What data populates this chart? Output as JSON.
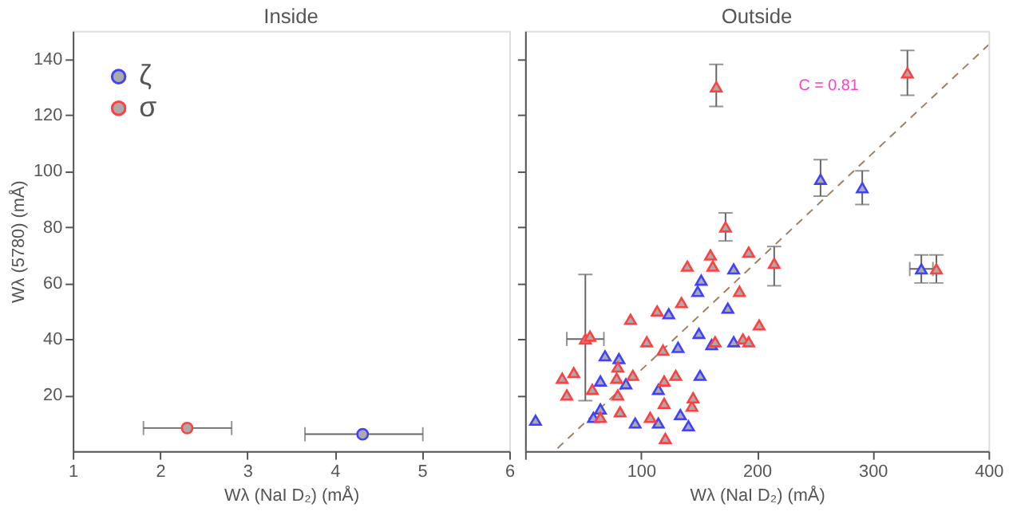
{
  "chart_data": [
    {
      "type": "scatter",
      "title": "Inside",
      "xlabel": "Wλ (NaI D₂) (mÅ)",
      "ylabel": "Wλ (5780) (mÅ)",
      "xlim": [
        1,
        6
      ],
      "ylim": [
        0,
        150
      ],
      "xticks": [
        1,
        2,
        3,
        4,
        5,
        6
      ],
      "yticks": [
        20,
        40,
        60,
        80,
        100,
        120,
        140
      ],
      "legend": "top left",
      "marker": "circle",
      "grid": false,
      "series": [
        {
          "name": "ζ",
          "color": "#4040ff",
          "x": [
            4.32
          ],
          "values": [
            6
          ],
          "xerrors": [
            [
              3.66,
              5.01
            ]
          ]
        },
        {
          "name": "σ",
          "color": "#ff4040",
          "x": [
            2.31
          ],
          "values": [
            8.2
          ],
          "xerrors": [
            [
              1.81,
              2.82
            ]
          ]
        }
      ]
    },
    {
      "type": "scatter",
      "title": "Outside",
      "xlabel": "Wλ (NaI D₂) (mÅ)",
      "xlim": [
        0,
        400
      ],
      "ylim": [
        0,
        150
      ],
      "xticks": [
        {
          "value": 0,
          "label": null
        },
        100,
        200,
        300,
        400
      ],
      "yticks": [
        20,
        40,
        60,
        80,
        100,
        120,
        140
      ],
      "tick_labels": "x",
      "legend": "top left",
      "marker": "triangle",
      "grid": false,
      "annotations": [
        "C = 0.81"
      ],
      "series": [
        {
          "name": "ζ",
          "color": "#4040ff",
          "x": [
            9,
            69,
            65,
            59,
            65,
            81,
            87,
            95,
            124,
            115,
            115,
            132,
            134,
            152,
            149,
            141,
            151,
            150,
            180,
            175,
            161,
            180,
            255,
            291,
            342
          ],
          "values": [
            11,
            34,
            25,
            12,
            15,
            33,
            24,
            10,
            49,
            22,
            10,
            37,
            13,
            61,
            57,
            9,
            27,
            42,
            65,
            51,
            38,
            39,
            97,
            94,
            65
          ],
          "errors": [
            null,
            null,
            null,
            null,
            null,
            null,
            null,
            null,
            null,
            null,
            null,
            null,
            null,
            null,
            null,
            null,
            null,
            null,
            null,
            null,
            null,
            null,
            [
              91,
              104
            ],
            [
              88,
              100
            ],
            [
              60,
              70
            ]
          ],
          "xerrors": [
            null,
            null,
            null,
            null,
            null,
            null,
            null,
            null,
            null,
            null,
            null,
            null,
            null,
            null,
            null,
            null,
            null,
            null,
            null,
            null,
            null,
            null,
            null,
            null,
            [
              332,
              352
            ]
          ]
        },
        {
          "name": "σ",
          "color": "#ff4040",
          "x": [
            165,
            330,
            173,
            193,
            160,
            215,
            140,
            162,
            52,
            56,
            32,
            42,
            36,
            58,
            65,
            80,
            79,
            80,
            82,
            93,
            91,
            105,
            114,
            119,
            120,
            108,
            120,
            121,
            130,
            135,
            144,
            145,
            185,
            164,
            188,
            193,
            202,
            355
          ],
          "values": [
            130,
            135,
            80,
            71,
            70,
            67,
            66,
            66,
            40,
            41,
            26,
            28,
            20,
            22,
            12,
            30,
            26,
            20,
            14,
            27,
            47,
            39,
            50,
            36,
            25,
            12,
            17,
            4.5,
            27,
            53,
            16,
            19,
            57,
            39,
            40,
            39,
            45,
            65
          ],
          "errors": [
            [
              123,
              138
            ],
            [
              127,
              143
            ],
            [
              75,
              85
            ],
            null,
            null,
            [
              59,
              73
            ],
            null,
            null,
            [
              18,
              63
            ],
            null,
            null,
            null,
            null,
            null,
            null,
            null,
            null,
            null,
            null,
            null,
            null,
            null,
            null,
            null,
            null,
            null,
            null,
            null,
            null,
            null,
            null,
            null,
            null,
            null,
            null,
            null,
            null,
            [
              60,
              70
            ]
          ],
          "xerrors": [
            null,
            null,
            null,
            null,
            null,
            null,
            null,
            null,
            [
              36,
              68
            ],
            null,
            null,
            null,
            null,
            null,
            null,
            null,
            null,
            null,
            null,
            null,
            null,
            null,
            null,
            null,
            null,
            null,
            null,
            null,
            null,
            null,
            null,
            null,
            null,
            null,
            null,
            null,
            null,
            null
          ]
        },
        {
          "type": "line",
          "color": "#a08060",
          "line_style": "dashed",
          "marker": "none",
          "x": [
            28,
            400
          ],
          "values": [
            1,
            145
          ]
        }
      ]
    }
  ]
}
